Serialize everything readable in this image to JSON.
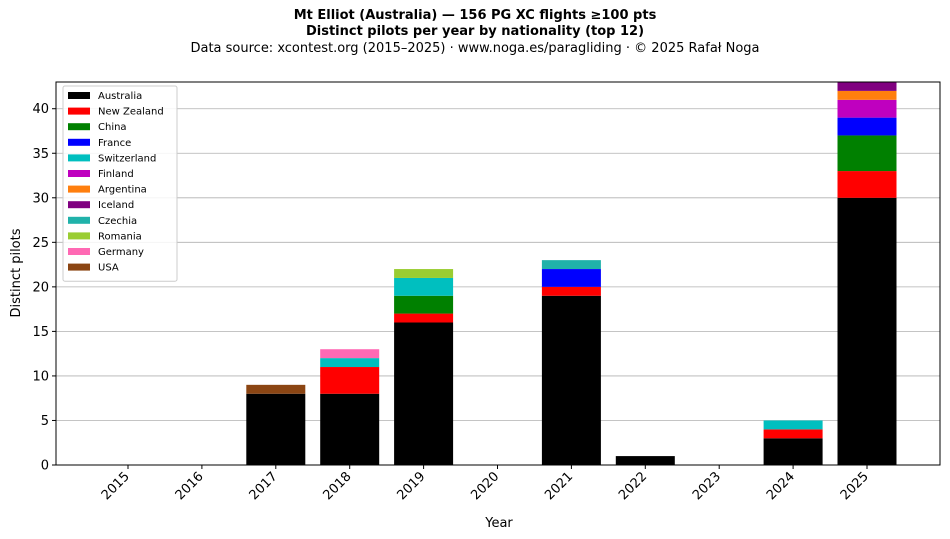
{
  "header": {
    "title": "Mt Elliot (Australia)  —  156 PG XC flights ≥100 pts",
    "subtitle": "Distinct pilots per year by nationality (top 12)",
    "source": "Data source: xcontest.org (2015–2025)  ·  www.noga.es/paragliding  ·  © 2025 Rafał Noga"
  },
  "chart_data": {
    "type": "bar",
    "stacked": true,
    "xlabel": "Year",
    "ylabel": "Distinct pilots",
    "ylim": [
      0,
      43
    ],
    "yticks": [
      0,
      5,
      10,
      15,
      20,
      25,
      30,
      35,
      40
    ],
    "grid": "horizontal",
    "legend_position": "top-left",
    "categories": [
      "2015",
      "2016",
      "2017",
      "2018",
      "2019",
      "2020",
      "2021",
      "2022",
      "2023",
      "2024",
      "2025"
    ],
    "series": [
      {
        "name": "Australia",
        "color": "#000000",
        "values": [
          0,
          0,
          8,
          8,
          16,
          0,
          19,
          1,
          0,
          3,
          30
        ]
      },
      {
        "name": "New Zealand",
        "color": "#ff0000",
        "values": [
          0,
          0,
          0,
          3,
          1,
          0,
          1,
          0,
          0,
          1,
          3
        ]
      },
      {
        "name": "China",
        "color": "#008000",
        "values": [
          0,
          0,
          0,
          0,
          2,
          0,
          0,
          0,
          0,
          0,
          4
        ]
      },
      {
        "name": "France",
        "color": "#0000ff",
        "values": [
          0,
          0,
          0,
          0,
          0,
          0,
          2,
          0,
          0,
          0,
          2
        ]
      },
      {
        "name": "Switzerland",
        "color": "#00bfbf",
        "values": [
          0,
          0,
          0,
          1,
          2,
          0,
          0,
          0,
          0,
          1,
          0
        ]
      },
      {
        "name": "Finland",
        "color": "#bf00bf",
        "values": [
          0,
          0,
          0,
          0,
          0,
          0,
          0,
          0,
          0,
          0,
          2
        ]
      },
      {
        "name": "Argentina",
        "color": "#ff7f0e",
        "values": [
          0,
          0,
          0,
          0,
          0,
          0,
          0,
          0,
          0,
          0,
          1
        ]
      },
      {
        "name": "Iceland",
        "color": "#800080",
        "values": [
          0,
          0,
          0,
          0,
          0,
          0,
          0,
          0,
          0,
          0,
          1
        ]
      },
      {
        "name": "Czechia",
        "color": "#20b2aa",
        "values": [
          0,
          0,
          0,
          0,
          0,
          0,
          1,
          0,
          0,
          0,
          0
        ]
      },
      {
        "name": "Romania",
        "color": "#9acd32",
        "values": [
          0,
          0,
          0,
          0,
          1,
          0,
          0,
          0,
          0,
          0,
          0
        ]
      },
      {
        "name": "Germany",
        "color": "#ff69b4",
        "values": [
          0,
          0,
          0,
          1,
          0,
          0,
          0,
          0,
          0,
          0,
          0
        ]
      },
      {
        "name": "USA",
        "color": "#8b4513",
        "values": [
          0,
          0,
          1,
          0,
          0,
          0,
          0,
          0,
          0,
          0,
          0
        ]
      }
    ]
  }
}
